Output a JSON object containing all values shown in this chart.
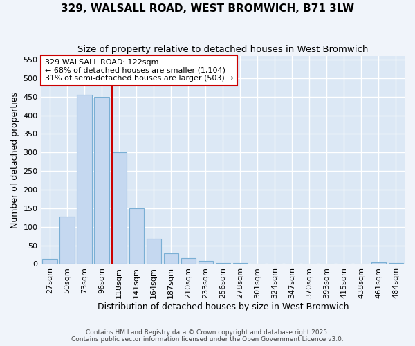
{
  "title": "329, WALSALL ROAD, WEST BROMWICH, B71 3LW",
  "subtitle": "Size of property relative to detached houses in West Bromwich",
  "xlabel": "Distribution of detached houses by size in West Bromwich",
  "ylabel": "Number of detached properties",
  "bar_labels": [
    "27sqm",
    "50sqm",
    "73sqm",
    "96sqm",
    "118sqm",
    "141sqm",
    "164sqm",
    "187sqm",
    "210sqm",
    "233sqm",
    "256sqm",
    "278sqm",
    "301sqm",
    "324sqm",
    "347sqm",
    "370sqm",
    "393sqm",
    "415sqm",
    "438sqm",
    "461sqm",
    "484sqm"
  ],
  "bar_values": [
    13,
    128,
    455,
    450,
    300,
    150,
    68,
    28,
    15,
    8,
    3,
    2,
    1,
    1,
    1,
    1,
    1,
    1,
    1,
    5,
    3
  ],
  "bar_color": "#c5d8f0",
  "bar_edge_color": "#7aafd4",
  "ylim": [
    0,
    560
  ],
  "yticks": [
    0,
    50,
    100,
    150,
    200,
    250,
    300,
    350,
    400,
    450,
    500,
    550
  ],
  "annotation_text": "329 WALSALL ROAD: 122sqm\n← 68% of detached houses are smaller (1,104)\n31% of semi-detached houses are larger (503) →",
  "annotation_box_color": "#ffffff",
  "annotation_box_edge": "#cc0000",
  "footer1": "Contains HM Land Registry data © Crown copyright and database right 2025.",
  "footer2": "Contains public sector information licensed under the Open Government Licence v3.0.",
  "background_color": "#f0f4fa",
  "plot_bg_color": "#dce8f5",
  "grid_color": "#ffffff",
  "title_fontsize": 11,
  "subtitle_fontsize": 9.5,
  "tick_fontsize": 8,
  "ylabel_fontsize": 9,
  "xlabel_fontsize": 9,
  "annotation_fontsize": 8,
  "red_line_index": 4
}
